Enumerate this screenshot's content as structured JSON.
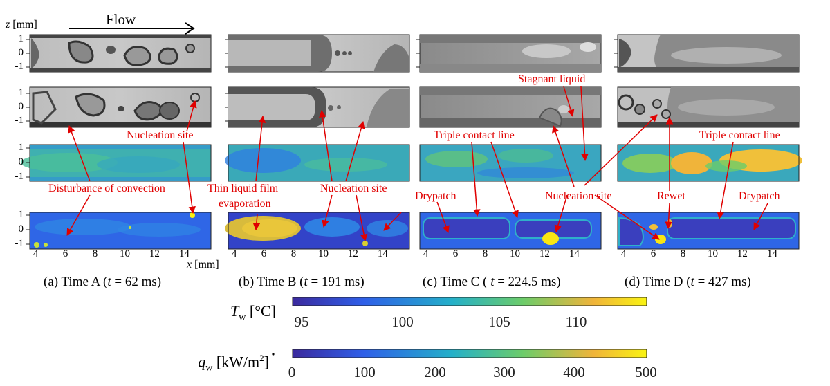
{
  "axes": {
    "z_label_var": "z",
    "z_label_unit": "[mm]",
    "x_label_var": "x",
    "x_label_unit": "[mm]",
    "flow_label": "Flow",
    "z_ticks": [
      "1",
      "0",
      "-1"
    ],
    "x_ticks": [
      "4",
      "6",
      "8",
      "10",
      "12",
      "14"
    ]
  },
  "captions": [
    {
      "pre": "(a) Time A (",
      "var": "t",
      "post": " = 62 ms)"
    },
    {
      "pre": "(b) Time B (",
      "var": "t",
      "post": " = 191 ms)"
    },
    {
      "pre": "(c) Time C ( ",
      "var": "t",
      "post": " = 224.5 ms)"
    },
    {
      "pre": "(d) Time D (",
      "var": "t",
      "post": " = 427 ms)"
    }
  ],
  "annotations": {
    "nucleation_a": "Nucleation site",
    "disturbance": "Disturbance of convection",
    "thin_film_1": "Thin liquid film",
    "thin_film_2": "evaporation",
    "nucleation_b": "Nucleation site",
    "drypatch_c": "Drypatch",
    "triple_c": "Triple contact line",
    "stagnant": "Stagnant liquid",
    "nucleation_c": "Nucleation site",
    "rewet": "Rewet",
    "triple_d": "Triple contact line",
    "drypatch_d": "Drypatch"
  },
  "colorbars": {
    "tw_var": "T",
    "tw_sub": "w",
    "tw_unit": "[°C]",
    "tw_ticks": [
      "95",
      "100",
      "105",
      "110"
    ],
    "q_var": "q",
    "q_sub": "w",
    "q_unit": "[kW/m",
    "q_unit_sup": "2",
    "q_unit_end": "]",
    "q_ticks": [
      "0",
      "100",
      "200",
      "300",
      "400",
      "500"
    ]
  },
  "colors": {
    "annotation": "#e00000",
    "cmap": [
      "#3b2a9e",
      "#2f5fe8",
      "#24b0c9",
      "#6ccc6a",
      "#f0b43a",
      "#f9f312"
    ]
  }
}
